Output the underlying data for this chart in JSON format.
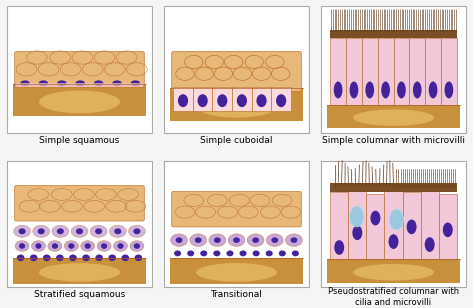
{
  "background_color": "#f5f5f5",
  "panel_bg": "#ffffff",
  "border_color": "#aaaaaa",
  "title_fontsize": 6.5,
  "labels": [
    "Simple squamous",
    "Simple cuboidal",
    "Simple columnar with microvilli",
    "Stratified squamous",
    "Transitional",
    "Pseudostratified columnar with\ncilia and microvilli"
  ],
  "colors": {
    "tan_base": "#c8903a",
    "tan_mid": "#d4a040",
    "tan_light": "#f0c870",
    "pink_cell": "#f2c8d8",
    "pink_light": "#fadadd",
    "purple_nucleus": "#44229a",
    "purple_dark": "#2211aa",
    "cell_border": "#c07830",
    "squamous_top": "#d4a055",
    "brown_microvilli": "#5a3518",
    "brown_mid": "#7a4f25",
    "blue_goblet": "#90c8e0",
    "blue_goblet2": "#b0d8f0",
    "lavender": "#c8a8d8",
    "peach_cell": "#e8b878",
    "peach_light": "#f0cc90",
    "pink_squamous": "#e8c0a0",
    "cell_line": "#b06020"
  }
}
